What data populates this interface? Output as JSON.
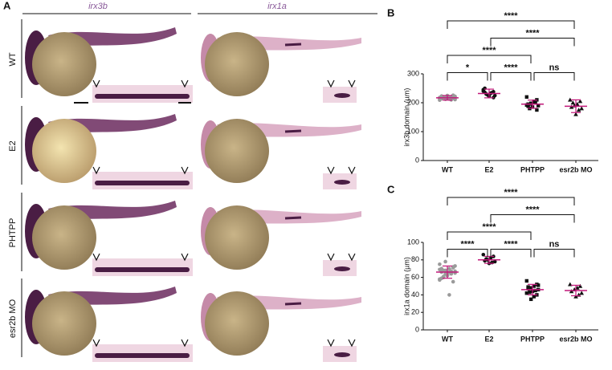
{
  "panel_a": {
    "label": "A",
    "columns": [
      "irx3b",
      "irx1a"
    ],
    "rows": [
      "WT",
      "E2",
      "PHTPP",
      "esr2b MO"
    ]
  },
  "chart_data": [
    {
      "type": "scatter",
      "panel": "B",
      "ylabel": "irx3b domain (µm)",
      "categories": [
        "WT",
        "E2",
        "PHTPP",
        "esr2b MO"
      ],
      "ylim": [
        0,
        300
      ],
      "yticks": [
        0,
        100,
        200,
        300
      ],
      "mean_color": "#c2187a",
      "series": [
        {
          "color": "#9a9a9a",
          "marker": "circle",
          "values": [
            218,
            215,
            220,
            212,
            222,
            216,
            210,
            225,
            219,
            214,
            221,
            213,
            217,
            223,
            211,
            218,
            216,
            220,
            209,
            226,
            215,
            219,
            214,
            222
          ],
          "mean": 217,
          "sd": 8
        },
        {
          "color": "#111111",
          "marker": "circle",
          "values": [
            245,
            238,
            232,
            228,
            250,
            225,
            235,
            222,
            230,
            240,
            218,
            233,
            227,
            236
          ],
          "mean": 232,
          "sd": 15
        },
        {
          "color": "#111111",
          "marker": "square",
          "values": [
            220,
            210,
            205,
            198,
            195,
            190,
            200,
            185,
            180,
            192,
            175,
            202,
            196,
            188
          ],
          "mean": 195,
          "sd": 14
        },
        {
          "color": "#111111",
          "marker": "triangle",
          "values": [
            210,
            205,
            195,
            190,
            185,
            180,
            175,
            160,
            200
          ],
          "mean": 188,
          "sd": 22
        }
      ],
      "comparisons": [
        {
          "from": 0,
          "to": 3,
          "label": "****"
        },
        {
          "from": 1,
          "to": 3,
          "label": "****"
        },
        {
          "from": 0,
          "to": 2,
          "label": "****"
        },
        {
          "from": 0,
          "to": 1,
          "label": "*"
        },
        {
          "from": 1,
          "to": 2,
          "label": "****"
        },
        {
          "from": 2,
          "to": 3,
          "label": "ns"
        }
      ]
    },
    {
      "type": "scatter",
      "panel": "C",
      "ylabel": "irx1a domain (µm)",
      "categories": [
        "WT",
        "E2",
        "PHTPP",
        "esr2b MO"
      ],
      "ylim": [
        0,
        100
      ],
      "yticks": [
        0,
        20,
        40,
        60,
        80,
        100
      ],
      "mean_color": "#c2187a",
      "series": [
        {
          "color": "#9a9a9a",
          "marker": "circle",
          "values": [
            75,
            72,
            70,
            68,
            66,
            65,
            64,
            62,
            60,
            58,
            55,
            40,
            78,
            70,
            67,
            65,
            63,
            61,
            69,
            71,
            66,
            64,
            59,
            73,
            67,
            62,
            68,
            57
          ],
          "mean": 66,
          "sd": 7
        },
        {
          "color": "#111111",
          "marker": "circle",
          "values": [
            86,
            84,
            82,
            80,
            79,
            78,
            77,
            76,
            81
          ],
          "mean": 80,
          "sd": 4
        },
        {
          "color": "#111111",
          "marker": "square",
          "values": [
            56,
            52,
            50,
            48,
            47,
            46,
            45,
            44,
            43,
            42,
            40,
            38,
            35,
            49,
            51
          ],
          "mean": 46,
          "sd": 6
        },
        {
          "color": "#111111",
          "marker": "triangle",
          "values": [
            52,
            50,
            48,
            46,
            44,
            42,
            40,
            38
          ],
          "mean": 45,
          "sd": 6
        }
      ],
      "comparisons": [
        {
          "from": 0,
          "to": 3,
          "label": "****"
        },
        {
          "from": 1,
          "to": 3,
          "label": "****"
        },
        {
          "from": 0,
          "to": 2,
          "label": "****"
        },
        {
          "from": 0,
          "to": 1,
          "label": "****"
        },
        {
          "from": 1,
          "to": 2,
          "label": "****"
        },
        {
          "from": 2,
          "to": 3,
          "label": "ns"
        }
      ]
    }
  ]
}
